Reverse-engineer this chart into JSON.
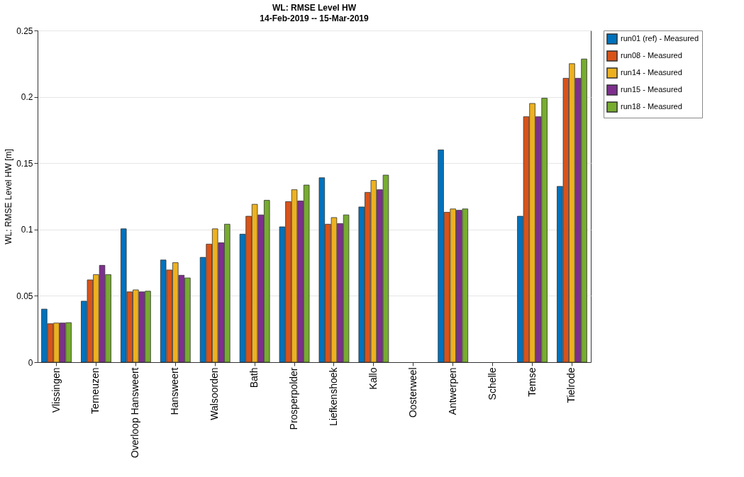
{
  "chart_data": {
    "type": "bar",
    "title": "WL: RMSE Level HW",
    "subtitle": "14-Feb-2019 -- 15-Mar-2019",
    "ylabel": "WL: RMSE Level HW [m]",
    "categories": [
      "Vlissingen",
      "Terneuzen",
      "Overloop Hansweert",
      "Hansweert",
      "Walsoorden",
      "Bath",
      "Prosperpolder",
      "Liefkenshoek",
      "Kallo",
      "Oosterweel",
      "Antwerpen",
      "Schelle",
      "Temse",
      "Tielrode"
    ],
    "series": [
      {
        "name": "run01 (ref) - Measured",
        "color": "#0072bd",
        "values": [
          0.04,
          0.046,
          0.1005,
          0.077,
          0.079,
          0.0965,
          0.102,
          0.139,
          0.117,
          null,
          0.16,
          null,
          0.11,
          0.1325
        ]
      },
      {
        "name": "run08 - Measured",
        "color": "#d95319",
        "values": [
          0.029,
          0.062,
          0.053,
          0.0695,
          0.089,
          0.11,
          0.121,
          0.104,
          0.128,
          null,
          0.113,
          null,
          0.185,
          0.214
        ]
      },
      {
        "name": "run14 - Measured",
        "color": "#edb120",
        "values": [
          0.0295,
          0.066,
          0.0545,
          0.075,
          0.1005,
          0.119,
          0.13,
          0.109,
          0.137,
          null,
          0.1155,
          null,
          0.195,
          0.225
        ]
      },
      {
        "name": "run15 - Measured",
        "color": "#7e2f8e",
        "values": [
          0.0295,
          0.073,
          0.053,
          0.0655,
          0.09,
          0.111,
          0.1215,
          0.1045,
          0.13,
          null,
          0.1145,
          null,
          0.185,
          0.214
        ]
      },
      {
        "name": "run18 - Measured",
        "color": "#77ac30",
        "values": [
          0.0298,
          0.066,
          0.0535,
          0.0635,
          0.104,
          0.122,
          0.1335,
          0.111,
          0.141,
          null,
          0.1155,
          null,
          0.199,
          0.2285
        ]
      }
    ],
    "ylim": [
      0,
      0.25
    ],
    "yticks": [
      0,
      0.05,
      0.1,
      0.15,
      0.2,
      0.25
    ],
    "grid": "y",
    "legend": "top right"
  }
}
